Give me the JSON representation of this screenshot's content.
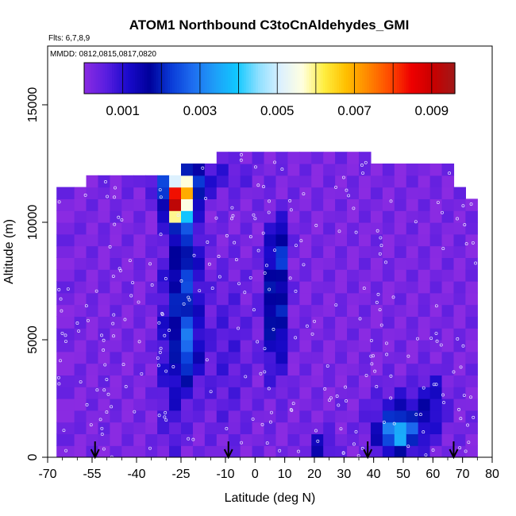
{
  "chart_data": {
    "type": "heatmap",
    "title": "ATOM1 Northbound C3toCnAldehydes_GMI",
    "flights_label": "Flts: 6,7,8,9",
    "dates_label": "MMDD: 0812,0815,0817,0820",
    "xlabel": "Latitude (deg N)",
    "ylabel": "Altitude (m)",
    "xlim": [
      -70,
      80
    ],
    "ylim": [
      0,
      17500
    ],
    "x_ticks": [
      -70,
      -55,
      -40,
      -25,
      -10,
      0,
      10,
      20,
      30,
      40,
      50,
      60,
      70,
      80
    ],
    "y_ticks": [
      0,
      5000,
      10000,
      15000
    ],
    "colorbar": {
      "range": [
        0,
        0.0096
      ],
      "tick_values": [
        0.001,
        0.003,
        0.005,
        0.007,
        0.009
      ],
      "tick_labels": [
        "0.001",
        "0.003",
        "0.005",
        "0.007",
        "0.009"
      ],
      "colors": [
        "#8a2be2",
        "#5a1ee0",
        "#1a0acc",
        "#00009a",
        "#0a3cd8",
        "#1e6ef0",
        "#1e9ef8",
        "#10c8ff",
        "#8ee0ff",
        "#dcf0ff",
        "#ffffe0",
        "#ffee40",
        "#ffc000",
        "#ff8800",
        "#ff4a00",
        "#ee0000",
        "#c80000",
        "#a01818"
      ]
    },
    "colorbar_orientation": "horizontal, inside top of plot",
    "marker_arrows_lat": [
      -54,
      -9,
      38,
      67
    ],
    "value_grid": {
      "lat_edges": [
        -67,
        -61,
        -57,
        -53,
        -49,
        -45,
        -41,
        -37,
        -33,
        -29,
        -25,
        -21,
        -17,
        -13,
        -9,
        -5,
        -1,
        3,
        7,
        11,
        15,
        19,
        23,
        27,
        31,
        35,
        39,
        43,
        47,
        51,
        55,
        59,
        63,
        67,
        71,
        75
      ],
      "alt_edges": [
        0,
        500,
        1000,
        1500,
        2000,
        2500,
        3000,
        3500,
        4000,
        4500,
        5000,
        5500,
        6000,
        6500,
        7000,
        7500,
        8000,
        8500,
        9000,
        9500,
        10000,
        10500,
        11000,
        11500,
        12000,
        12500,
        13000
      ],
      "top_alt_by_column": [
        11500,
        11500,
        12000,
        12000,
        12000,
        12000,
        12000,
        12000,
        12000,
        12000,
        12500,
        12500,
        12500,
        13000,
        13000,
        13000,
        13000,
        13000,
        13000,
        13000,
        13000,
        13000,
        13000,
        13000,
        13000,
        13000,
        12500,
        12500,
        12500,
        12500,
        12500,
        12500,
        12500,
        11500,
        11000
      ]
    }
  }
}
